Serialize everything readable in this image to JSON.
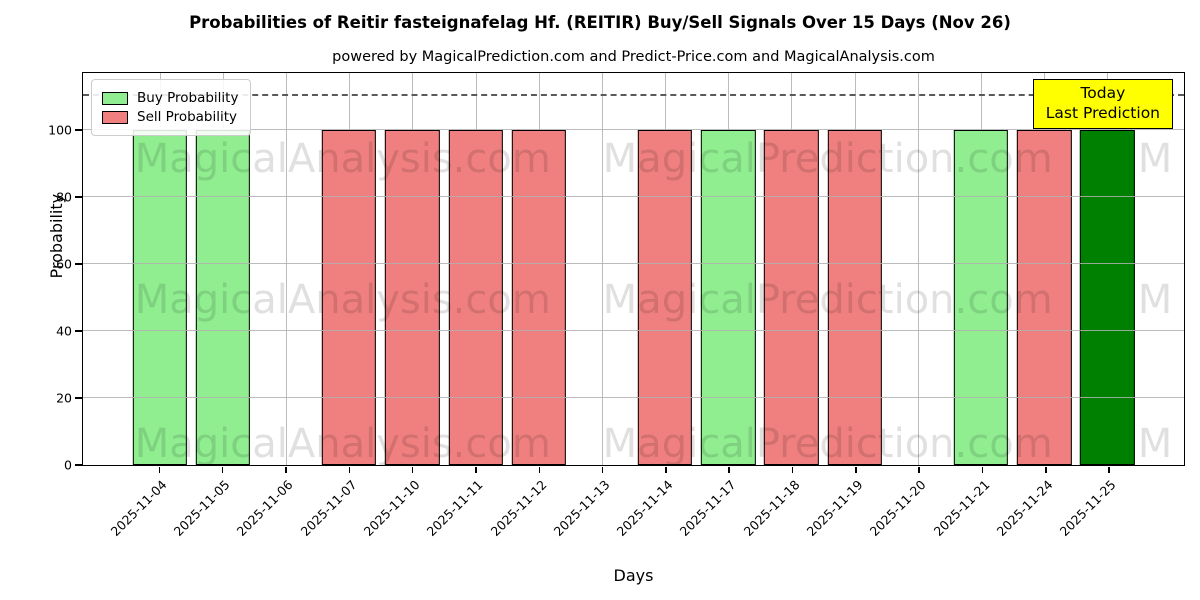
{
  "title": "Probabilities of Reitir fasteignafelag Hf. (REITIR) Buy/Sell Signals Over 15 Days (Nov 26)",
  "subtitle": "powered by MagicalPrediction.com and Predict-Price.com and MagicalAnalysis.com",
  "legend": {
    "buy_label": "Buy Probability",
    "sell_label": "Sell Probability"
  },
  "annotation": {
    "line1": "Today",
    "line2": "Last Prediction"
  },
  "axes": {
    "x_label": "Days",
    "y_label": "Probability",
    "y_ticks": [
      0,
      20,
      40,
      60,
      80,
      100
    ]
  },
  "watermarks": {
    "left_text": "MagicalAnalysis.com",
    "right_text": "MagicalPrediction.com",
    "edge_text": "M"
  },
  "colors": {
    "buy": "#90EE90",
    "sell": "#F08080",
    "last": "#008000",
    "annotation_bg": "#FFFF00",
    "dashed_line": "#5a5a5a",
    "grid": "#b0b0b0"
  },
  "chart_data": {
    "type": "bar",
    "title": "Probabilities of Reitir fasteignafelag Hf. (REITIR) Buy/Sell Signals Over 15 Days (Nov 26)",
    "xlabel": "Days",
    "ylabel": "Probability",
    "ylim": [
      0,
      117
    ],
    "threshold_line_y": 110,
    "grid": true,
    "legend_position": "upper-left",
    "categories": [
      "2025-11-04",
      "2025-11-05",
      "2025-11-06",
      "2025-11-07",
      "2025-11-10",
      "2025-11-11",
      "2025-11-12",
      "2025-11-13",
      "2025-11-14",
      "2025-11-17",
      "2025-11-18",
      "2025-11-19",
      "2025-11-20",
      "2025-11-21",
      "2025-11-24",
      "2025-11-25"
    ],
    "bars": [
      {
        "date": "2025-11-04",
        "value": 100,
        "signal": "buy"
      },
      {
        "date": "2025-11-05",
        "value": 100,
        "signal": "buy"
      },
      {
        "date": "2025-11-06",
        "value": 0,
        "signal": "none"
      },
      {
        "date": "2025-11-07",
        "value": 100,
        "signal": "sell"
      },
      {
        "date": "2025-11-10",
        "value": 100,
        "signal": "sell"
      },
      {
        "date": "2025-11-11",
        "value": 100,
        "signal": "sell"
      },
      {
        "date": "2025-11-12",
        "value": 100,
        "signal": "sell"
      },
      {
        "date": "2025-11-13",
        "value": 0,
        "signal": "none"
      },
      {
        "date": "2025-11-14",
        "value": 100,
        "signal": "sell"
      },
      {
        "date": "2025-11-17",
        "value": 100,
        "signal": "buy"
      },
      {
        "date": "2025-11-18",
        "value": 100,
        "signal": "sell"
      },
      {
        "date": "2025-11-19",
        "value": 100,
        "signal": "sell"
      },
      {
        "date": "2025-11-20",
        "value": 0,
        "signal": "none"
      },
      {
        "date": "2025-11-21",
        "value": 100,
        "signal": "buy"
      },
      {
        "date": "2025-11-24",
        "value": 100,
        "signal": "sell"
      },
      {
        "date": "2025-11-25",
        "value": 100,
        "signal": "last"
      }
    ],
    "series": [
      {
        "name": "Buy Probability",
        "values": [
          100,
          100,
          null,
          null,
          null,
          null,
          null,
          null,
          null,
          100,
          null,
          null,
          null,
          100,
          null,
          null
        ]
      },
      {
        "name": "Sell Probability",
        "values": [
          null,
          null,
          null,
          100,
          100,
          100,
          100,
          null,
          100,
          null,
          100,
          100,
          null,
          null,
          100,
          null
        ]
      },
      {
        "name": "Last Prediction",
        "values": [
          null,
          null,
          null,
          null,
          null,
          null,
          null,
          null,
          null,
          null,
          null,
          null,
          null,
          null,
          null,
          100
        ]
      }
    ]
  }
}
